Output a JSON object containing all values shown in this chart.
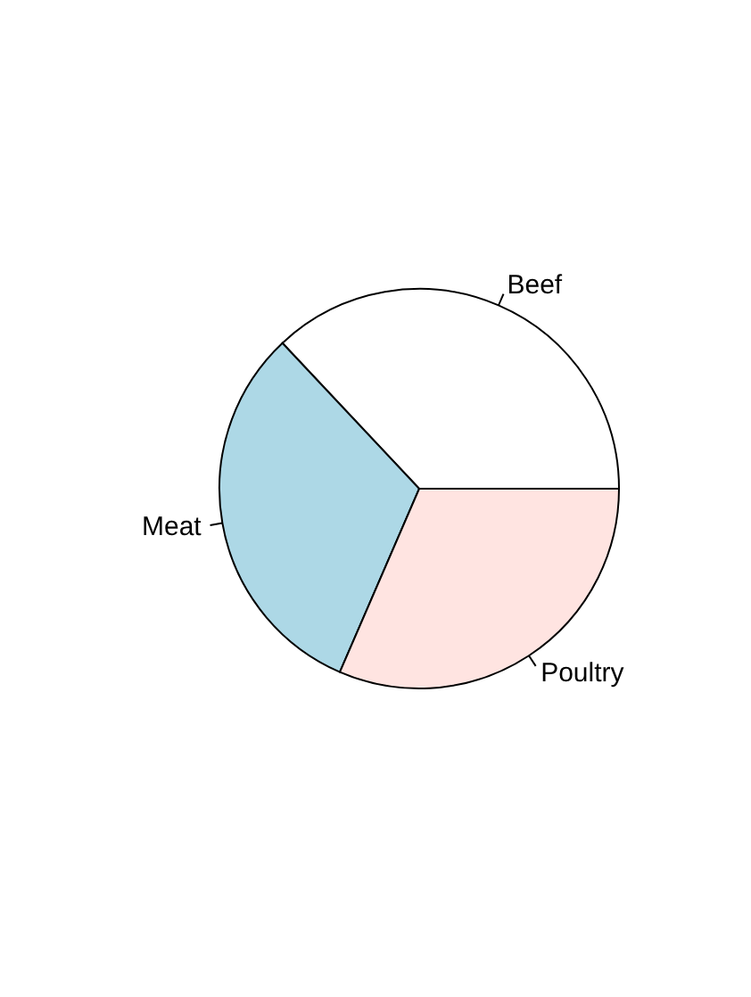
{
  "chart_data": {
    "type": "pie",
    "categories": [
      "Beef",
      "Meat",
      "Poultry"
    ],
    "values": [
      37,
      31.5,
      31.5
    ],
    "colors": [
      "#ffffff",
      "#add8e6",
      "#ffe4e1"
    ],
    "legend": false
  }
}
